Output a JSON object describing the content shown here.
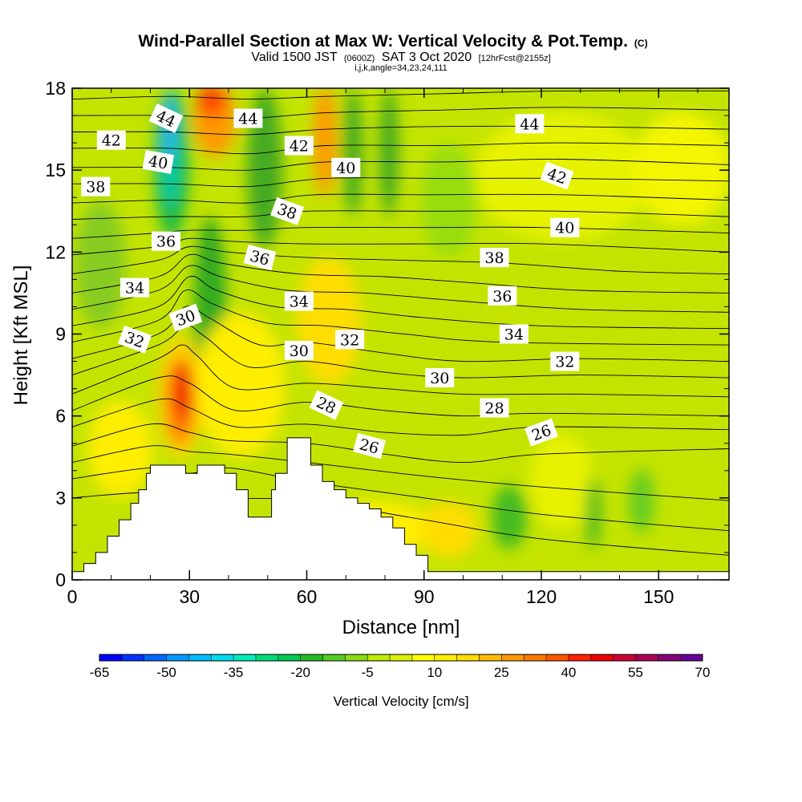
{
  "chart_data": {
    "type": "contour-section",
    "title": "Wind-Parallel Section at Max W: Vertical Velocity & Pot.Temp.",
    "title_mark": "(C)",
    "subtitle": {
      "pre": "Valid 1500 JST",
      "mid": "(0600Z)",
      "post": "SAT 3 Oct 2020",
      "tag": "[12hrFcst@2155z]"
    },
    "subtitle3": "i,j,k,angle=34,23,24,111",
    "xlabel": "Distance [nm]",
    "ylabel": "Height [Kft MSL]",
    "xlim": [
      0,
      168
    ],
    "ylim": [
      0,
      18
    ],
    "xticks": [
      0,
      30,
      60,
      90,
      120,
      150
    ],
    "yticks": [
      0,
      3,
      6,
      9,
      12,
      15,
      18
    ],
    "colorbar": {
      "title": "Vertical Velocity [cm/s]",
      "labels": [
        "-65",
        "-50",
        "-35",
        "-20",
        "-5",
        "10",
        "25",
        "40",
        "55",
        "70"
      ],
      "colors": [
        "#0000ff",
        "#0033ff",
        "#0066ff",
        "#0099ff",
        "#00bbff",
        "#00ddee",
        "#00eebb",
        "#00dd77",
        "#00cc55",
        "#22bb22",
        "#55cc22",
        "#88dd11",
        "#bbee00",
        "#ddf000",
        "#ffff00",
        "#ffee00",
        "#ffdd00",
        "#ffbb00",
        "#ff9900",
        "#ff7700",
        "#ff5500",
        "#ff2200",
        "#ee0000",
        "#cc0033",
        "#aa0055",
        "#880077",
        "#660099"
      ]
    },
    "terrain": [
      [
        0,
        0.3
      ],
      [
        3,
        0.3
      ],
      [
        3,
        0.6
      ],
      [
        6,
        0.6
      ],
      [
        6,
        1.0
      ],
      [
        9,
        1.0
      ],
      [
        9,
        1.6
      ],
      [
        12,
        1.6
      ],
      [
        12,
        2.2
      ],
      [
        15,
        2.2
      ],
      [
        15,
        2.8
      ],
      [
        17,
        2.8
      ],
      [
        17,
        3.3
      ],
      [
        19,
        3.3
      ],
      [
        19,
        3.9
      ],
      [
        20,
        3.9
      ],
      [
        20,
        4.2
      ],
      [
        29,
        4.2
      ],
      [
        29,
        3.9
      ],
      [
        32,
        3.9
      ],
      [
        32,
        4.2
      ],
      [
        39,
        4.2
      ],
      [
        39,
        3.9
      ],
      [
        42,
        3.9
      ],
      [
        42,
        3.3
      ],
      [
        45,
        3.3
      ],
      [
        45,
        2.3
      ],
      [
        51,
        2.3
      ],
      [
        51,
        3.3
      ],
      [
        52,
        3.3
      ],
      [
        52,
        3.9
      ],
      [
        55,
        3.9
      ],
      [
        55,
        5.2
      ],
      [
        61,
        5.2
      ],
      [
        61,
        4.2
      ],
      [
        64,
        4.2
      ],
      [
        64,
        3.6
      ],
      [
        67,
        3.6
      ],
      [
        67,
        3.3
      ],
      [
        70,
        3.3
      ],
      [
        70,
        3.0
      ],
      [
        73,
        3.0
      ],
      [
        73,
        2.8
      ],
      [
        76,
        2.8
      ],
      [
        76,
        2.6
      ],
      [
        79,
        2.6
      ],
      [
        79,
        2.3
      ],
      [
        82,
        2.3
      ],
      [
        82,
        1.9
      ],
      [
        85,
        1.9
      ],
      [
        85,
        1.3
      ],
      [
        88,
        1.3
      ],
      [
        88,
        0.9
      ],
      [
        91,
        0.9
      ],
      [
        91,
        0.3
      ],
      [
        168,
        0.3
      ]
    ],
    "theta_isolines": [
      {
        "pts": [
          [
            0,
            3.0
          ],
          [
            20,
            3.2
          ],
          [
            40,
            3.0
          ],
          [
            60,
            2.9
          ],
          [
            90,
            2.2
          ],
          [
            120,
            1.5
          ],
          [
            168,
            0.9
          ]
        ]
      },
      {
        "pts": [
          [
            0,
            3.7
          ],
          [
            20,
            4.1
          ],
          [
            30,
            3.9
          ],
          [
            40,
            4.1
          ],
          [
            60,
            3.6
          ],
          [
            90,
            3.0
          ],
          [
            120,
            2.4
          ],
          [
            168,
            1.8
          ]
        ]
      },
      {
        "pts": [
          [
            0,
            4.3
          ],
          [
            20,
            4.9
          ],
          [
            30,
            4.7
          ],
          [
            40,
            4.6
          ],
          [
            60,
            4.3
          ],
          [
            90,
            3.8
          ],
          [
            120,
            3.4
          ],
          [
            168,
            2.9
          ]
        ]
      },
      {
        "pts": [
          [
            0,
            4.9
          ],
          [
            20,
            5.7
          ],
          [
            30,
            5.4
          ],
          [
            40,
            5.1
          ],
          [
            60,
            5.0
          ],
          [
            80,
            4.6
          ],
          [
            100,
            4.3
          ],
          [
            120,
            4.6
          ],
          [
            168,
            4.8
          ]
        ]
      },
      {
        "pts": [
          [
            0,
            5.6
          ],
          [
            22,
            6.6
          ],
          [
            30,
            6.3
          ],
          [
            42,
            5.6
          ],
          [
            60,
            5.7
          ],
          [
            80,
            5.4
          ],
          [
            100,
            5.3
          ],
          [
            120,
            5.6
          ],
          [
            168,
            5.5
          ]
        ]
      },
      {
        "pts": [
          [
            0,
            6.2
          ],
          [
            22,
            7.4
          ],
          [
            30,
            7.2
          ],
          [
            42,
            6.2
          ],
          [
            60,
            6.5
          ],
          [
            80,
            6.2
          ],
          [
            100,
            6.0
          ],
          [
            120,
            6.1
          ],
          [
            168,
            6.0
          ]
        ]
      },
      {
        "pts": [
          [
            0,
            6.8
          ],
          [
            22,
            8.1
          ],
          [
            28,
            8.6
          ],
          [
            32,
            8.2
          ],
          [
            42,
            7.0
          ],
          [
            60,
            7.2
          ],
          [
            80,
            7.0
          ],
          [
            100,
            6.8
          ],
          [
            130,
            6.8
          ],
          [
            168,
            6.7
          ]
        ]
      },
      {
        "pts": [
          [
            0,
            7.5
          ],
          [
            22,
            8.6
          ],
          [
            29,
            9.3
          ],
          [
            34,
            8.9
          ],
          [
            45,
            7.8
          ],
          [
            60,
            8.0
          ],
          [
            80,
            7.6
          ],
          [
            100,
            7.4
          ],
          [
            130,
            7.5
          ],
          [
            168,
            7.4
          ]
        ]
      },
      {
        "pts": [
          [
            0,
            8.1
          ],
          [
            22,
            9.0
          ],
          [
            29,
            10.0
          ],
          [
            35,
            9.6
          ],
          [
            48,
            8.6
          ],
          [
            60,
            8.7
          ],
          [
            80,
            8.3
          ],
          [
            100,
            8.0
          ],
          [
            130,
            8.1
          ],
          [
            168,
            8.0
          ]
        ]
      },
      {
        "pts": [
          [
            0,
            8.7
          ],
          [
            22,
            9.5
          ],
          [
            29,
            10.6
          ],
          [
            36,
            10.1
          ],
          [
            50,
            9.4
          ],
          [
            65,
            9.3
          ],
          [
            85,
            9.0
          ],
          [
            110,
            8.7
          ],
          [
            168,
            8.6
          ]
        ]
      },
      {
        "pts": [
          [
            0,
            9.3
          ],
          [
            22,
            10.0
          ],
          [
            30,
            11.1
          ],
          [
            37,
            10.6
          ],
          [
            52,
            10.0
          ],
          [
            70,
            9.9
          ],
          [
            90,
            9.6
          ],
          [
            120,
            9.3
          ],
          [
            168,
            9.2
          ]
        ]
      },
      {
        "pts": [
          [
            0,
            9.9
          ],
          [
            22,
            10.6
          ],
          [
            30,
            11.5
          ],
          [
            38,
            11.1
          ],
          [
            55,
            10.6
          ],
          [
            75,
            10.5
          ],
          [
            100,
            10.2
          ],
          [
            130,
            9.9
          ],
          [
            168,
            9.8
          ]
        ]
      },
      {
        "pts": [
          [
            0,
            10.5
          ],
          [
            22,
            11.1
          ],
          [
            30,
            11.9
          ],
          [
            38,
            11.6
          ],
          [
            58,
            11.2
          ],
          [
            80,
            11.1
          ],
          [
            100,
            10.9
          ],
          [
            130,
            10.6
          ],
          [
            168,
            10.5
          ]
        ]
      },
      {
        "pts": [
          [
            0,
            11.2
          ],
          [
            22,
            11.7
          ],
          [
            30,
            12.2
          ],
          [
            40,
            12.0
          ],
          [
            60,
            11.8
          ],
          [
            85,
            11.7
          ],
          [
            110,
            11.6
          ],
          [
            140,
            11.3
          ],
          [
            168,
            11.2
          ]
        ]
      },
      {
        "pts": [
          [
            0,
            11.9
          ],
          [
            22,
            12.2
          ],
          [
            30,
            12.5
          ],
          [
            40,
            12.4
          ],
          [
            60,
            12.3
          ],
          [
            90,
            12.3
          ],
          [
            120,
            12.3
          ],
          [
            168,
            12.0
          ]
        ]
      },
      {
        "pts": [
          [
            0,
            12.5
          ],
          [
            22,
            12.7
          ],
          [
            30,
            12.8
          ],
          [
            45,
            12.8
          ],
          [
            60,
            12.9
          ],
          [
            90,
            12.9
          ],
          [
            120,
            12.9
          ],
          [
            168,
            12.7
          ]
        ]
      },
      {
        "pts": [
          [
            0,
            13.2
          ],
          [
            25,
            13.3
          ],
          [
            45,
            13.3
          ],
          [
            60,
            13.5
          ],
          [
            90,
            13.5
          ],
          [
            125,
            13.5
          ],
          [
            168,
            13.3
          ]
        ]
      },
      {
        "pts": [
          [
            0,
            13.8
          ],
          [
            25,
            13.9
          ],
          [
            45,
            13.8
          ],
          [
            62,
            14.1
          ],
          [
            90,
            14.1
          ],
          [
            125,
            14.1
          ],
          [
            168,
            13.9
          ]
        ]
      },
      {
        "pts": [
          [
            0,
            14.5
          ],
          [
            25,
            14.5
          ],
          [
            45,
            14.4
          ],
          [
            65,
            14.7
          ],
          [
            95,
            14.7
          ],
          [
            125,
            14.7
          ],
          [
            168,
            14.6
          ]
        ]
      },
      {
        "pts": [
          [
            0,
            15.1
          ],
          [
            25,
            15.1
          ],
          [
            45,
            15.0
          ],
          [
            65,
            15.3
          ],
          [
            95,
            15.3
          ],
          [
            125,
            15.4
          ],
          [
            168,
            15.2
          ]
        ]
      },
      {
        "pts": [
          [
            0,
            15.8
          ],
          [
            25,
            15.8
          ],
          [
            45,
            15.6
          ],
          [
            65,
            15.9
          ],
          [
            95,
            15.9
          ],
          [
            125,
            16.0
          ],
          [
            168,
            15.9
          ]
        ]
      },
      {
        "pts": [
          [
            0,
            16.4
          ],
          [
            25,
            16.4
          ],
          [
            45,
            16.3
          ],
          [
            65,
            16.5
          ],
          [
            95,
            16.6
          ],
          [
            125,
            16.6
          ],
          [
            168,
            16.5
          ]
        ]
      },
      {
        "pts": [
          [
            0,
            17.0
          ],
          [
            25,
            17.0
          ],
          [
            45,
            16.9
          ],
          [
            65,
            17.1
          ],
          [
            95,
            17.2
          ],
          [
            125,
            17.3
          ],
          [
            168,
            17.2
          ]
        ]
      },
      {
        "pts": [
          [
            0,
            17.6
          ],
          [
            25,
            17.7
          ],
          [
            45,
            17.6
          ],
          [
            65,
            17.7
          ],
          [
            95,
            17.8
          ],
          [
            125,
            17.9
          ],
          [
            168,
            17.9
          ]
        ]
      }
    ],
    "theta_labels": [
      {
        "text": "44",
        "x": 24,
        "y": 16.9,
        "rot": 25
      },
      {
        "text": "44",
        "x": 45,
        "y": 16.9,
        "rot": 0
      },
      {
        "text": "44",
        "x": 117,
        "y": 16.7,
        "rot": 0
      },
      {
        "text": "42",
        "x": 10,
        "y": 16.1,
        "rot": 0
      },
      {
        "text": "42",
        "x": 58,
        "y": 15.9,
        "rot": 0
      },
      {
        "text": "42",
        "x": 124,
        "y": 14.8,
        "rot": 20
      },
      {
        "text": "40",
        "x": 22,
        "y": 15.3,
        "rot": 10
      },
      {
        "text": "40",
        "x": 70,
        "y": 15.1,
        "rot": 0
      },
      {
        "text": "40",
        "x": 126,
        "y": 12.9,
        "rot": 0
      },
      {
        "text": "38",
        "x": 6,
        "y": 14.4,
        "rot": 0
      },
      {
        "text": "38",
        "x": 55,
        "y": 13.5,
        "rot": 20
      },
      {
        "text": "38",
        "x": 108,
        "y": 11.8,
        "rot": 0
      },
      {
        "text": "36",
        "x": 24,
        "y": 12.4,
        "rot": 0
      },
      {
        "text": "36",
        "x": 48,
        "y": 11.8,
        "rot": 15
      },
      {
        "text": "36",
        "x": 110,
        "y": 10.4,
        "rot": 0
      },
      {
        "text": "34",
        "x": 16,
        "y": 10.7,
        "rot": 0
      },
      {
        "text": "34",
        "x": 58,
        "y": 10.2,
        "rot": 0
      },
      {
        "text": "34",
        "x": 113,
        "y": 9.0,
        "rot": 0
      },
      {
        "text": "32",
        "x": 16,
        "y": 8.8,
        "rot": 20
      },
      {
        "text": "32",
        "x": 71,
        "y": 8.8,
        "rot": 0
      },
      {
        "text": "32",
        "x": 126,
        "y": 8.0,
        "rot": 0
      },
      {
        "text": "30",
        "x": 29,
        "y": 9.6,
        "rot": -20
      },
      {
        "text": "30",
        "x": 58,
        "y": 8.4,
        "rot": 0
      },
      {
        "text": "30",
        "x": 94,
        "y": 7.4,
        "rot": 0
      },
      {
        "text": "28",
        "x": 65,
        "y": 6.4,
        "rot": 25
      },
      {
        "text": "28",
        "x": 108,
        "y": 6.3,
        "rot": 0
      },
      {
        "text": "26",
        "x": 76,
        "y": 4.9,
        "rot": 15
      },
      {
        "text": "26",
        "x": 120,
        "y": 5.4,
        "rot": -20
      }
    ]
  }
}
